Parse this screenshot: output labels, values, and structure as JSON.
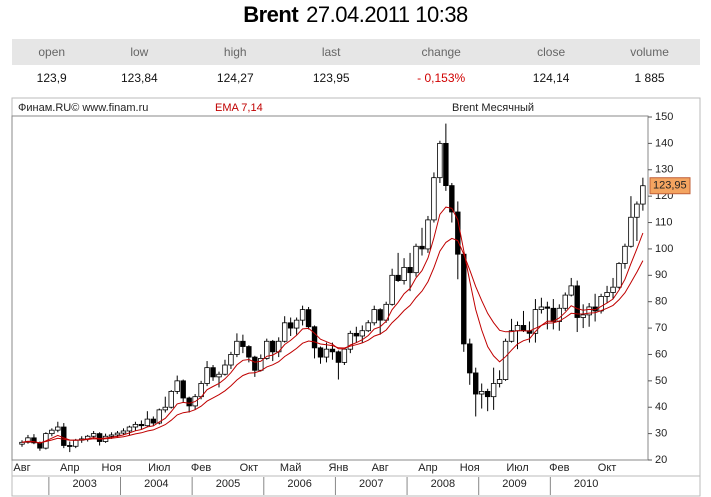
{
  "header": {
    "symbol": "Brent",
    "datetime": "27.04.2011 10:38"
  },
  "table": {
    "columns": [
      "open",
      "low",
      "high",
      "last",
      "change",
      "close",
      "volume"
    ],
    "values": [
      "123,9",
      "123,84",
      "124,27",
      "123,95",
      "- 0,153%",
      "124,14",
      "1 885"
    ]
  },
  "chart_data": {
    "type": "candlestick",
    "title": "Brent Месячный",
    "source": "Финам.RU©  www.finam.ru",
    "indicator": "EMA 7,14",
    "ema_periods": [
      7,
      14
    ],
    "ema_color": "#c00000",
    "up_color": "#ffffff",
    "down_color": "#000000",
    "last_label": "123,95",
    "last_color": "#f4a460",
    "ylim": [
      20,
      150
    ],
    "yticks": [
      20,
      30,
      40,
      50,
      60,
      70,
      80,
      90,
      100,
      110,
      120,
      130,
      140,
      150
    ],
    "categories": [
      "Авг",
      null,
      null,
      null,
      null,
      null,
      null,
      null,
      "Апр",
      null,
      null,
      null,
      null,
      null,
      null,
      "Ноя",
      null,
      null,
      null,
      null,
      null,
      null,
      null,
      "Июл",
      null,
      null,
      null,
      null,
      null,
      null,
      "Фев",
      null,
      null,
      null,
      null,
      null,
      null,
      null,
      "Окт",
      null,
      null,
      null,
      null,
      null,
      null,
      "Май",
      null,
      null,
      null,
      null,
      null,
      null,
      null,
      "Янв",
      null,
      null,
      null,
      null,
      null,
      null,
      "Авг",
      null,
      null,
      null,
      null,
      null,
      null,
      null,
      "Апр",
      null,
      null,
      null,
      null,
      null,
      null,
      "Ноя",
      null,
      null,
      null,
      null,
      null,
      null,
      null,
      "Июл",
      null,
      null,
      null,
      null,
      null,
      null,
      "Фев",
      null,
      null,
      null,
      null,
      null,
      null,
      null,
      "Окт",
      null,
      null,
      null,
      null,
      null,
      null
    ],
    "years": [
      "2003",
      "2004",
      "2005",
      "2006",
      "2007",
      "2008",
      "2009",
      "2010"
    ],
    "ohlc": [
      [
        26.0,
        27.5,
        25.0,
        26.7
      ],
      [
        26.7,
        29.5,
        26.2,
        28.4
      ],
      [
        28.4,
        29.8,
        26.0,
        26.5
      ],
      [
        26.5,
        27.0,
        23.5,
        24.5
      ],
      [
        24.5,
        30.5,
        24.0,
        30.0
      ],
      [
        30.0,
        32.0,
        29.0,
        31.3
      ],
      [
        31.3,
        34.5,
        30.5,
        32.5
      ],
      [
        32.5,
        34.0,
        24.5,
        25.5
      ],
      [
        25.5,
        27.0,
        23.0,
        25.2
      ],
      [
        25.2,
        28.0,
        24.5,
        27.5
      ],
      [
        27.5,
        29.0,
        26.5,
        28.0
      ],
      [
        28.0,
        29.5,
        27.0,
        29.0
      ],
      [
        29.0,
        31.0,
        28.0,
        30.0
      ],
      [
        30.0,
        30.5,
        25.5,
        27.0
      ],
      [
        27.0,
        30.0,
        26.5,
        29.0
      ],
      [
        29.0,
        30.5,
        28.0,
        29.5
      ],
      [
        29.5,
        31.0,
        28.5,
        30.2
      ],
      [
        30.2,
        32.0,
        29.5,
        31.0
      ],
      [
        31.0,
        33.0,
        29.5,
        32.5
      ],
      [
        32.5,
        34.5,
        31.0,
        33.5
      ],
      [
        33.5,
        35.0,
        31.5,
        33.0
      ],
      [
        33.0,
        38.5,
        32.5,
        35.5
      ],
      [
        35.5,
        36.5,
        33.0,
        34.0
      ],
      [
        34.0,
        39.5,
        33.5,
        39.0
      ],
      [
        39.0,
        44.0,
        38.0,
        40.0
      ],
      [
        40.0,
        46.5,
        39.5,
        46.0
      ],
      [
        46.0,
        52.0,
        45.0,
        50.0
      ],
      [
        50.0,
        50.5,
        42.0,
        43.5
      ],
      [
        43.5,
        44.0,
        38.0,
        40.5
      ],
      [
        40.5,
        45.0,
        39.0,
        44.0
      ],
      [
        44.0,
        50.0,
        43.0,
        49.0
      ],
      [
        49.0,
        57.5,
        48.0,
        55.0
      ],
      [
        55.0,
        56.0,
        50.0,
        51.5
      ],
      [
        51.5,
        53.5,
        47.5,
        52.5
      ],
      [
        52.5,
        58.0,
        52.0,
        56.0
      ],
      [
        56.0,
        61.0,
        54.5,
        60.0
      ],
      [
        60.0,
        68.0,
        59.0,
        65.0
      ],
      [
        65.0,
        67.5,
        60.5,
        63.0
      ],
      [
        63.0,
        63.5,
        57.0,
        59.0
      ],
      [
        59.0,
        59.5,
        51.5,
        54.0
      ],
      [
        54.0,
        60.0,
        53.5,
        58.5
      ],
      [
        58.5,
        66.0,
        58.0,
        65.0
      ],
      [
        65.0,
        65.5,
        57.5,
        61.0
      ],
      [
        61.0,
        66.5,
        59.0,
        65.0
      ],
      [
        65.0,
        74.5,
        64.5,
        72.0
      ],
      [
        72.0,
        74.0,
        67.0,
        70.0
      ],
      [
        70.0,
        74.0,
        67.5,
        73.0
      ],
      [
        73.0,
        78.5,
        71.0,
        77.0
      ],
      [
        77.0,
        78.0,
        69.5,
        70.5
      ],
      [
        70.5,
        71.0,
        58.5,
        62.5
      ],
      [
        62.5,
        63.0,
        56.5,
        59.0
      ],
      [
        59.0,
        64.5,
        57.0,
        62.0
      ],
      [
        62.0,
        64.5,
        58.0,
        61.0
      ],
      [
        61.0,
        61.5,
        50.5,
        57.0
      ],
      [
        57.0,
        62.5,
        56.0,
        62.0
      ],
      [
        62.0,
        69.0,
        60.5,
        68.0
      ],
      [
        68.0,
        70.5,
        64.5,
        67.0
      ],
      [
        67.0,
        71.0,
        64.5,
        69.0
      ],
      [
        69.0,
        73.0,
        68.5,
        72.0
      ],
      [
        72.0,
        78.5,
        71.0,
        77.0
      ],
      [
        77.0,
        77.5,
        67.5,
        73.0
      ],
      [
        73.0,
        80.0,
        72.0,
        79.0
      ],
      [
        79.0,
        92.5,
        78.5,
        90.0
      ],
      [
        90.0,
        98.5,
        87.5,
        88.0
      ],
      [
        88.0,
        96.5,
        86.5,
        93.0
      ],
      [
        93.0,
        98.5,
        84.0,
        91.0
      ],
      [
        91.0,
        102.0,
        89.5,
        101.0
      ],
      [
        101.0,
        108.0,
        97.5,
        100.0
      ],
      [
        100.0,
        112.5,
        98.5,
        111.0
      ],
      [
        111.0,
        129.0,
        110.0,
        127.0
      ],
      [
        127.0,
        141.0,
        125.0,
        140.0
      ],
      [
        140.0,
        147.5,
        122.0,
        124.0
      ],
      [
        124.0,
        125.0,
        110.0,
        114.0
      ],
      [
        114.0,
        118.0,
        88.5,
        98.0
      ],
      [
        98.0,
        99.0,
        61.0,
        64.0
      ],
      [
        64.0,
        66.0,
        48.5,
        53.0
      ],
      [
        53.0,
        55.0,
        36.5,
        45.0
      ],
      [
        45.0,
        49.0,
        39.5,
        46.0
      ],
      [
        46.0,
        47.0,
        38.5,
        44.0
      ],
      [
        44.0,
        55.0,
        39.0,
        49.0
      ],
      [
        49.0,
        54.0,
        47.5,
        50.5
      ],
      [
        50.5,
        66.0,
        50.0,
        65.0
      ],
      [
        65.0,
        73.5,
        64.5,
        69.0
      ],
      [
        69.0,
        72.5,
        62.0,
        71.0
      ],
      [
        71.0,
        76.5,
        68.5,
        69.0
      ],
      [
        69.0,
        72.5,
        64.5,
        68.0
      ],
      [
        68.0,
        81.0,
        64.5,
        77.0
      ],
      [
        77.0,
        81.5,
        75.5,
        78.0
      ],
      [
        78.0,
        80.0,
        69.5,
        77.5
      ],
      [
        77.5,
        81.0,
        69.5,
        72.5
      ],
      [
        72.5,
        79.0,
        69.0,
        77.5
      ],
      [
        77.5,
        83.5,
        76.5,
        82.5
      ],
      [
        82.5,
        89.0,
        82.0,
        86.0
      ],
      [
        86.0,
        88.0,
        68.5,
        74.0
      ],
      [
        74.0,
        79.0,
        70.0,
        75.0
      ],
      [
        75.0,
        79.5,
        70.5,
        78.0
      ],
      [
        78.0,
        83.0,
        72.5,
        76.5
      ],
      [
        76.5,
        83.0,
        75.5,
        82.0
      ],
      [
        82.0,
        86.0,
        79.5,
        83.5
      ],
      [
        83.5,
        89.0,
        81.0,
        85.5
      ],
      [
        85.5,
        95.0,
        85.0,
        94.5
      ],
      [
        94.5,
        102.0,
        92.5,
        101.0
      ],
      [
        101.0,
        120.0,
        100.5,
        112.0
      ],
      [
        112.0,
        118.0,
        103.0,
        117.0
      ],
      [
        117.0,
        127.0,
        114.5,
        123.95
      ]
    ]
  }
}
